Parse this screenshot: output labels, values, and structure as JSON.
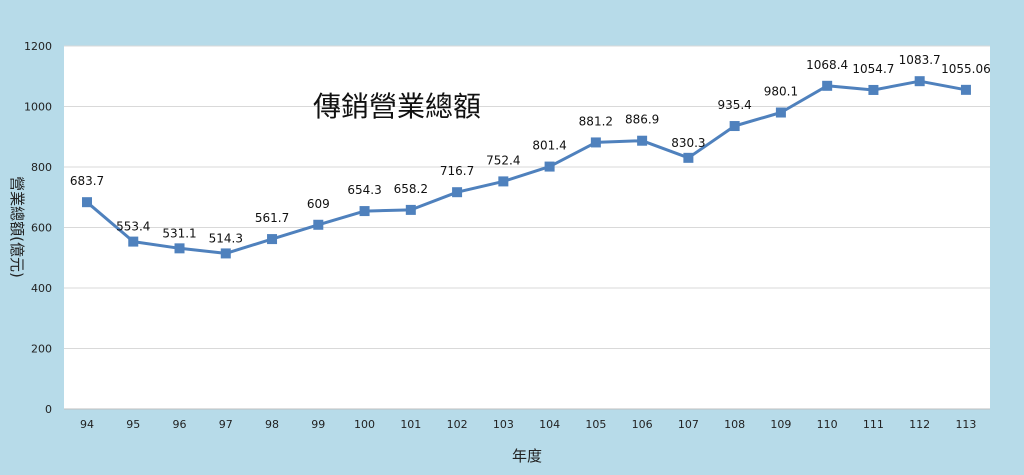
{
  "chart_data": {
    "type": "line",
    "title": "傳銷營業總額",
    "xlabel": "年度",
    "ylabel": "營業總額(億元)",
    "ylim": [
      0,
      1200
    ],
    "yticks": [
      0,
      200,
      400,
      600,
      800,
      1000,
      1200
    ],
    "grid": true,
    "categories": [
      "94",
      "95",
      "96",
      "97",
      "98",
      "99",
      "100",
      "101",
      "102",
      "103",
      "104",
      "105",
      "106",
      "107",
      "108",
      "109",
      "110",
      "111",
      "112",
      "113"
    ],
    "series": [
      {
        "values": [
          683.7,
          553.4,
          531.1,
          514.3,
          561.7,
          609,
          654.3,
          658.2,
          716.7,
          752.4,
          801.4,
          881.2,
          886.9,
          830.3,
          935.4,
          980.1,
          1068.4,
          1054.7,
          1083.7,
          1055.06
        ],
        "labels": [
          "683.7",
          "553.4",
          "531.1",
          "514.3",
          "561.7",
          "609",
          "654.3",
          "658.2",
          "716.7",
          "752.4",
          "801.4",
          "881.2",
          "886.9",
          "830.3",
          "935.4",
          "980.1",
          "1068.4",
          "1054.7",
          "1083.7",
          "1055.06"
        ],
        "color": "#4f81bd"
      }
    ]
  },
  "colors": {
    "background": "#b7dbe9",
    "plot_background": "#ffffff",
    "series": "#4f81bd"
  }
}
